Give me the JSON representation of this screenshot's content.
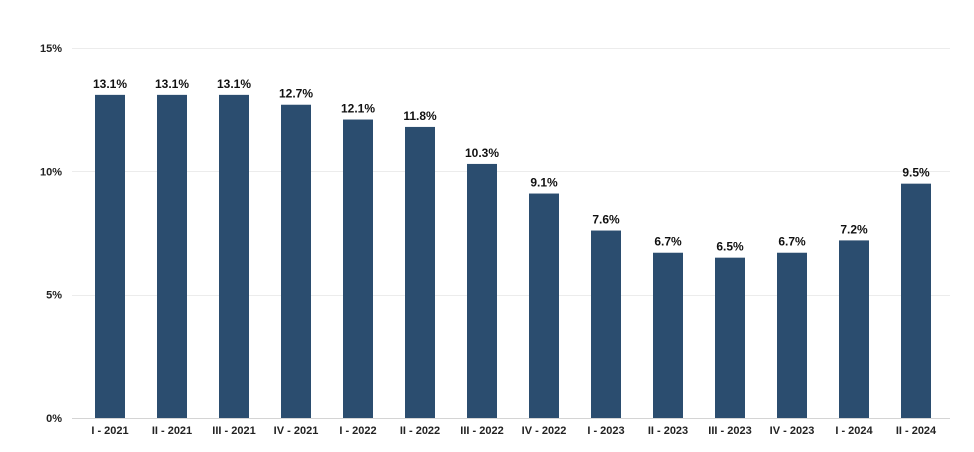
{
  "chart_data": {
    "type": "bar",
    "title": "",
    "xlabel": "",
    "ylabel": "",
    "categories": [
      "I - 2021",
      "II - 2021",
      "III - 2021",
      "IV - 2021",
      "I - 2022",
      "II - 2022",
      "III - 2022",
      "IV - 2022",
      "I - 2023",
      "II - 2023",
      "III - 2023",
      "IV - 2023",
      "I - 2024",
      "II - 2024"
    ],
    "values": [
      13.1,
      13.1,
      13.1,
      12.7,
      12.1,
      11.8,
      10.3,
      9.1,
      7.6,
      6.7,
      6.5,
      6.7,
      7.2,
      9.5
    ],
    "data_labels": [
      "13.1%",
      "13.1%",
      "13.1%",
      "12.7%",
      "12.1%",
      "11.8%",
      "10.3%",
      "9.1%",
      "7.6%",
      "6.7%",
      "6.5%",
      "6.7%",
      "7.2%",
      "9.5%"
    ],
    "ylim": [
      0,
      15
    ],
    "yticks": [
      0,
      5,
      10,
      15
    ],
    "ytick_labels": [
      "0%",
      "5%",
      "10%",
      "15%"
    ],
    "grid": true,
    "bar_color": "#2b4d6f"
  }
}
